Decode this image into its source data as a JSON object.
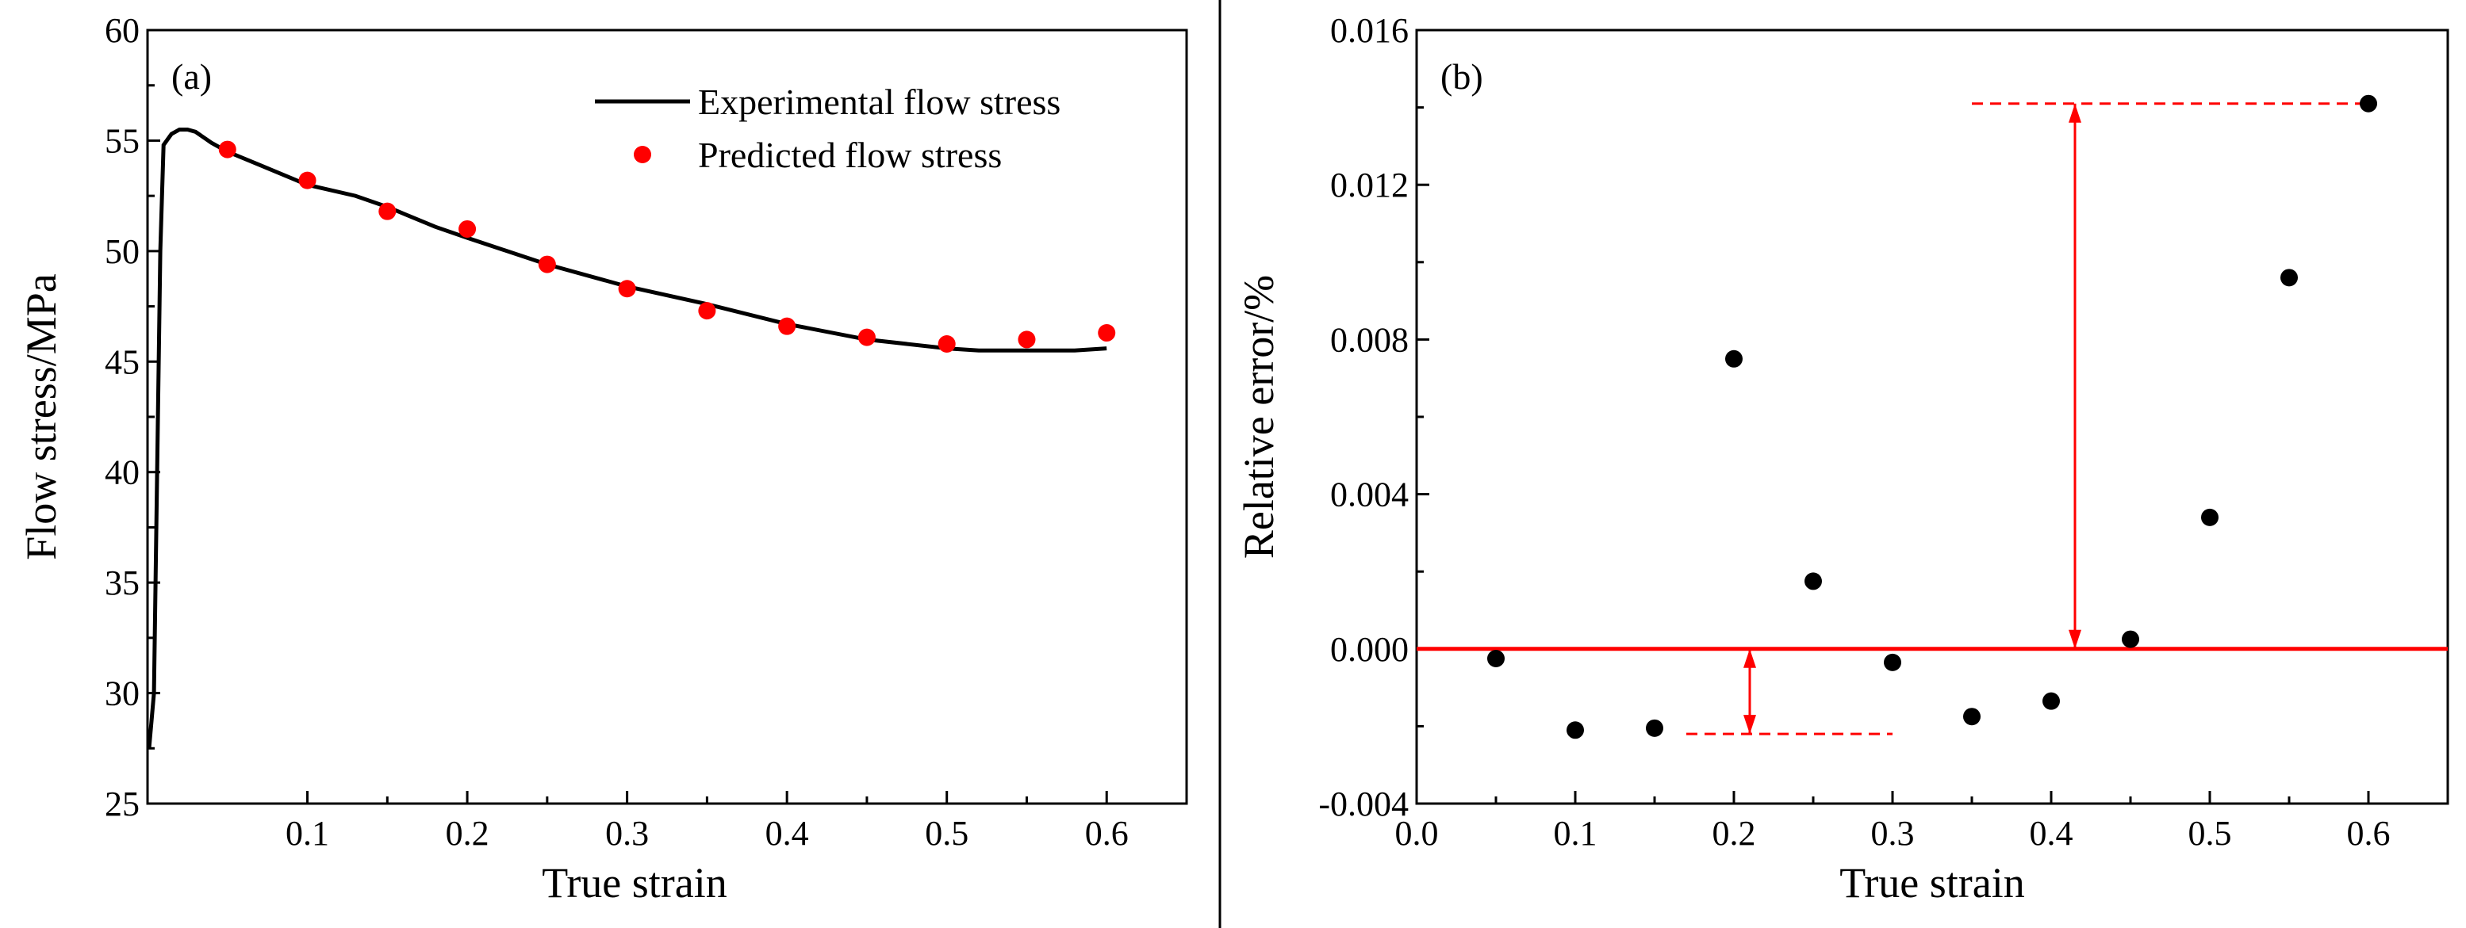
{
  "chart_data": [
    {
      "type": "line",
      "panel": "(a)",
      "xlabel": "True strain",
      "ylabel": "Flow stress/MPa",
      "xlim": [
        0.0,
        0.65
      ],
      "ylim": [
        25,
        60
      ],
      "xticks": [
        0.1,
        0.2,
        0.3,
        0.4,
        0.5,
        0.6
      ],
      "yticks": [
        25,
        30,
        35,
        40,
        45,
        50,
        55,
        60
      ],
      "xticklabels": [
        "0.1",
        "0.2",
        "0.3",
        "0.4",
        "0.5",
        "0.6"
      ],
      "yticklabels": [
        "25",
        "30",
        "35",
        "40",
        "45",
        "50",
        "55",
        "60"
      ],
      "legend_position": "top-right",
      "series": [
        {
          "name": "Experimental flow stress",
          "style": "line",
          "color": "#000000",
          "x": [
            0.001,
            0.004,
            0.006,
            0.008,
            0.01,
            0.015,
            0.02,
            0.025,
            0.03,
            0.04,
            0.05,
            0.07,
            0.1,
            0.13,
            0.15,
            0.18,
            0.2,
            0.25,
            0.3,
            0.35,
            0.4,
            0.45,
            0.5,
            0.52,
            0.55,
            0.58,
            0.6
          ],
          "y": [
            27.5,
            30.0,
            40.0,
            50.0,
            54.8,
            55.3,
            55.5,
            55.5,
            55.4,
            54.9,
            54.5,
            53.9,
            53.0,
            52.5,
            52.0,
            51.1,
            50.6,
            49.4,
            48.4,
            47.6,
            46.7,
            46.0,
            45.6,
            45.5,
            45.5,
            45.5,
            45.6
          ]
        },
        {
          "name": "Predicted flow stress",
          "style": "scatter",
          "color": "#ff0000",
          "x": [
            0.05,
            0.1,
            0.15,
            0.2,
            0.25,
            0.3,
            0.35,
            0.4,
            0.45,
            0.5,
            0.55,
            0.6
          ],
          "y": [
            54.6,
            53.2,
            51.8,
            51.0,
            49.4,
            48.3,
            47.3,
            46.6,
            46.1,
            45.8,
            46.0,
            46.3
          ]
        }
      ]
    },
    {
      "type": "scatter",
      "panel": "(b)",
      "xlabel": "True strain",
      "ylabel": "Relative error/%",
      "xlim": [
        0.0,
        0.65
      ],
      "ylim": [
        -0.004,
        0.016
      ],
      "xticks": [
        0.0,
        0.1,
        0.2,
        0.3,
        0.4,
        0.5,
        0.6
      ],
      "yticks": [
        -0.004,
        0.0,
        0.004,
        0.008,
        0.012,
        0.016
      ],
      "xticklabels": [
        "0.0",
        "0.1",
        "0.2",
        "0.3",
        "0.4",
        "0.5",
        "0.6"
      ],
      "yticklabels": [
        "-0.004",
        "0.000",
        "0.004",
        "0.008",
        "0.012",
        "0.016"
      ],
      "series": [
        {
          "name": "Relative error",
          "color": "#000000",
          "x": [
            0.05,
            0.1,
            0.15,
            0.2,
            0.25,
            0.3,
            0.35,
            0.4,
            0.45,
            0.5,
            0.55,
            0.6
          ],
          "y": [
            -0.00025,
            -0.0021,
            -0.00205,
            0.0075,
            0.00175,
            -0.00035,
            -0.00175,
            -0.00135,
            0.00025,
            0.0034,
            0.0096,
            0.0141
          ]
        }
      ],
      "reference_line": {
        "y": 0.0,
        "color": "#ff0000"
      },
      "annotations": [
        {
          "kind": "range-arrow",
          "x": 0.21,
          "y_from": 0.0,
          "y_to": -0.0022,
          "dash_x_from": 0.17,
          "dash_x_to": 0.3,
          "color": "#ff0000"
        },
        {
          "kind": "range-arrow",
          "x": 0.415,
          "y_from": 0.0,
          "y_to": 0.0141,
          "dash_x_from": 0.35,
          "dash_x_to": 0.6,
          "color": "#ff0000"
        }
      ]
    }
  ]
}
